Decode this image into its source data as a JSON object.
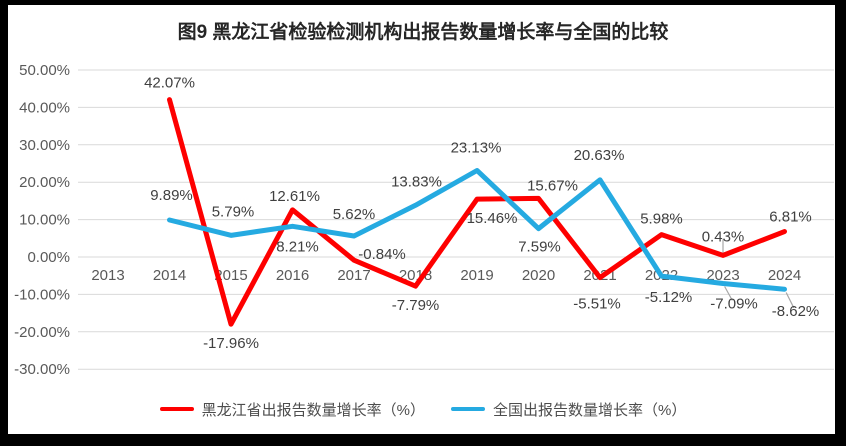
{
  "colors": {
    "background": "#ffffff",
    "frame": "#000000",
    "grid": "#d9d9d9",
    "axis_label": "#595959",
    "data_label": "#404040",
    "leader": "#a6a6a6"
  },
  "chart_data": {
    "type": "line",
    "title": "图9 黑龙江省检验检测机构出报告数量增长率与全国的比较",
    "x_categories": [
      "2013",
      "2014",
      "2015",
      "2016",
      "2017",
      "2018",
      "2019",
      "2020",
      "2021",
      "2022",
      "2023",
      "2024"
    ],
    "y_tick_labels": [
      "50.00%",
      "40.00%",
      "30.00%",
      "20.00%",
      "10.00%",
      "0.00%",
      "-10.00%",
      "-20.00%",
      "-30.00%"
    ],
    "ylim": [
      -30,
      50
    ],
    "grid": true,
    "legend_position": "bottom",
    "data_labels": true,
    "series": [
      {
        "name": "黑龙江省出报告数量增长率（%）",
        "color": "#fe0000",
        "values": [
          null,
          42.07,
          -17.96,
          12.61,
          -0.84,
          -7.79,
          15.46,
          15.67,
          -5.51,
          5.98,
          0.43,
          6.81
        ],
        "labels": [
          null,
          "42.07%",
          "-17.96%",
          "12.61%",
          "-0.84%",
          "-7.79%",
          "15.46%",
          "15.67%",
          "-5.51%",
          "5.98%",
          "0.43%",
          "6.81%"
        ],
        "label_offsets": [
          null,
          [
            0,
            -17
          ],
          [
            0,
            19
          ],
          [
            2,
            -14
          ],
          [
            28,
            -6
          ],
          [
            0,
            19
          ],
          [
            15,
            19
          ],
          [
            14,
            -13
          ],
          [
            -3,
            26
          ],
          [
            0,
            -16
          ],
          [
            0,
            -19
          ],
          [
            6,
            -15
          ]
        ],
        "leader_points": [
          10
        ]
      },
      {
        "name": "全国出报告数量增长率（%）",
        "color": "#25aae1",
        "values": [
          null,
          9.89,
          5.79,
          8.21,
          5.62,
          13.83,
          23.13,
          7.59,
          20.63,
          -5.12,
          -7.09,
          -8.62
        ],
        "labels": [
          null,
          "9.89%",
          "5.79%",
          "8.21%",
          "5.62%",
          "13.83%",
          "23.13%",
          "7.59%",
          "20.63%",
          "-5.12%",
          "-7.09%",
          "-8.62%"
        ],
        "label_offsets": [
          null,
          [
            2,
            -25
          ],
          [
            2,
            -24
          ],
          [
            5,
            20
          ],
          [
            0,
            -22
          ],
          [
            1,
            -24
          ],
          [
            -1,
            -23
          ],
          [
            1,
            18
          ],
          [
            -1,
            -25
          ],
          [
            7,
            21
          ],
          [
            11,
            20
          ],
          [
            11,
            22
          ]
        ],
        "leader_points": [
          10,
          11
        ]
      }
    ]
  }
}
